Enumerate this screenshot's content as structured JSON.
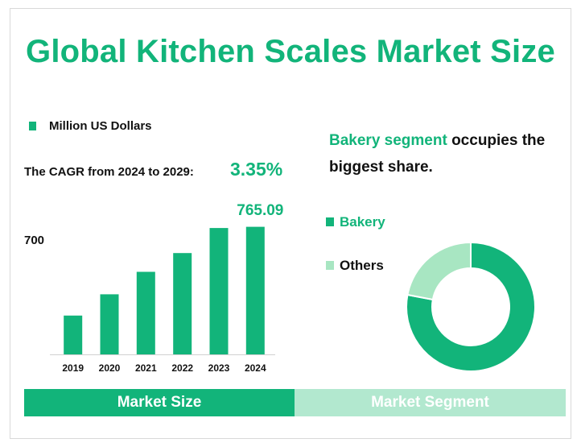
{
  "title": "Global Kitchen Scales Market Size",
  "legend_unit": "Million US Dollars",
  "cagr_label": "The CAGR from 2024 to 2029:",
  "cagr_value": "3.35%",
  "statement": {
    "highlight": "Bakery segment",
    "rest": " occupies the biggest share."
  },
  "tabs": {
    "left": "Market Size",
    "right": "Market Segment"
  },
  "colors": {
    "accent": "#12b47a",
    "light": "#b2e8cf",
    "others": "#a8e6c2"
  },
  "chart_data": [
    {
      "type": "bar",
      "title": "",
      "categories": [
        "2019",
        "2020",
        "2021",
        "2022",
        "2023",
        "2024"
      ],
      "values": [
        310,
        480,
        660,
        810,
        1010,
        1020
      ],
      "top_label": "765.09",
      "ytick_label": "700",
      "ylim": [
        0,
        1030
      ],
      "grid": false
    },
    {
      "type": "pie",
      "donut": true,
      "labels": [
        "Bakery",
        "Others"
      ],
      "values": [
        78,
        22
      ],
      "colors": [
        "#12b47a",
        "#a8e6c2"
      ]
    }
  ]
}
